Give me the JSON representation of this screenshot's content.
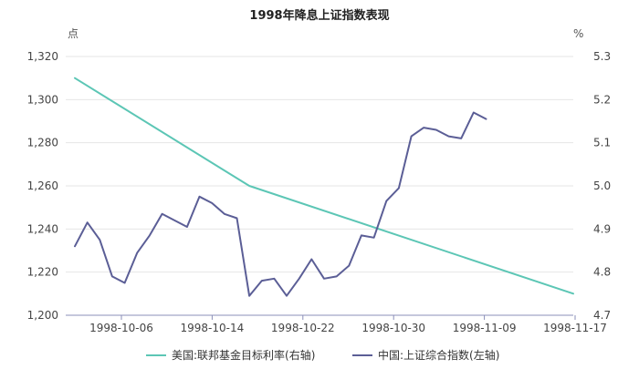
{
  "chart_data": {
    "type": "line",
    "title": "1998年降息上证指数表现",
    "left_axis": {
      "unit": "点",
      "ylim": [
        1200,
        1320
      ],
      "ticks": [
        1200,
        1220,
        1240,
        1260,
        1280,
        1300,
        1320
      ],
      "tick_labels": [
        "1,200",
        "1,220",
        "1,240",
        "1,260",
        "1,280",
        "1,300",
        "1,320"
      ]
    },
    "right_axis": {
      "unit": "%",
      "ylim": [
        4.7,
        5.3
      ],
      "ticks": [
        4.7,
        4.8,
        4.9,
        5.0,
        5.1,
        5.2,
        5.3
      ],
      "tick_labels": [
        "4.7",
        "4.8",
        "4.9",
        "5.0",
        "5.1",
        "5.2",
        "5.3"
      ]
    },
    "x_tick_labels": [
      "1998-10-06",
      "1998-10-14",
      "1998-10-22",
      "1998-10-30",
      "1998-11-09",
      "1998-11-17"
    ],
    "grid": {
      "horizontal": true,
      "vertical": false
    },
    "legend_position": "bottom",
    "series": [
      {
        "name": "美国:联邦基金目标利率(右轴)",
        "axis": "right",
        "color": "#5cc6b5",
        "points": [
          [
            0,
            5.25
          ],
          [
            14,
            5.0
          ],
          [
            40,
            4.75
          ]
        ]
      },
      {
        "name": "中国:上证综合指数(左轴)",
        "axis": "left",
        "color": "#5b5e96",
        "points": [
          [
            0,
            1232
          ],
          [
            1,
            1243
          ],
          [
            2,
            1235
          ],
          [
            3,
            1218
          ],
          [
            4,
            1215
          ],
          [
            5,
            1229
          ],
          [
            6,
            1237
          ],
          [
            7,
            1247
          ],
          [
            8,
            1244
          ],
          [
            9,
            1241
          ],
          [
            10,
            1255
          ],
          [
            11,
            1252
          ],
          [
            12,
            1247
          ],
          [
            13,
            1245
          ],
          [
            14,
            1209
          ],
          [
            15,
            1216
          ],
          [
            16,
            1217
          ],
          [
            17,
            1209
          ],
          [
            18,
            1217
          ],
          [
            19,
            1226
          ],
          [
            20,
            1217
          ],
          [
            21,
            1218
          ],
          [
            22,
            1223
          ],
          [
            23,
            1237
          ],
          [
            24,
            1236
          ],
          [
            25,
            1253
          ],
          [
            26,
            1259
          ],
          [
            27,
            1283
          ],
          [
            28,
            1287
          ],
          [
            29,
            1286
          ],
          [
            30,
            1283
          ],
          [
            31,
            1282
          ],
          [
            32,
            1294
          ],
          [
            33,
            1291
          ]
        ]
      }
    ]
  }
}
